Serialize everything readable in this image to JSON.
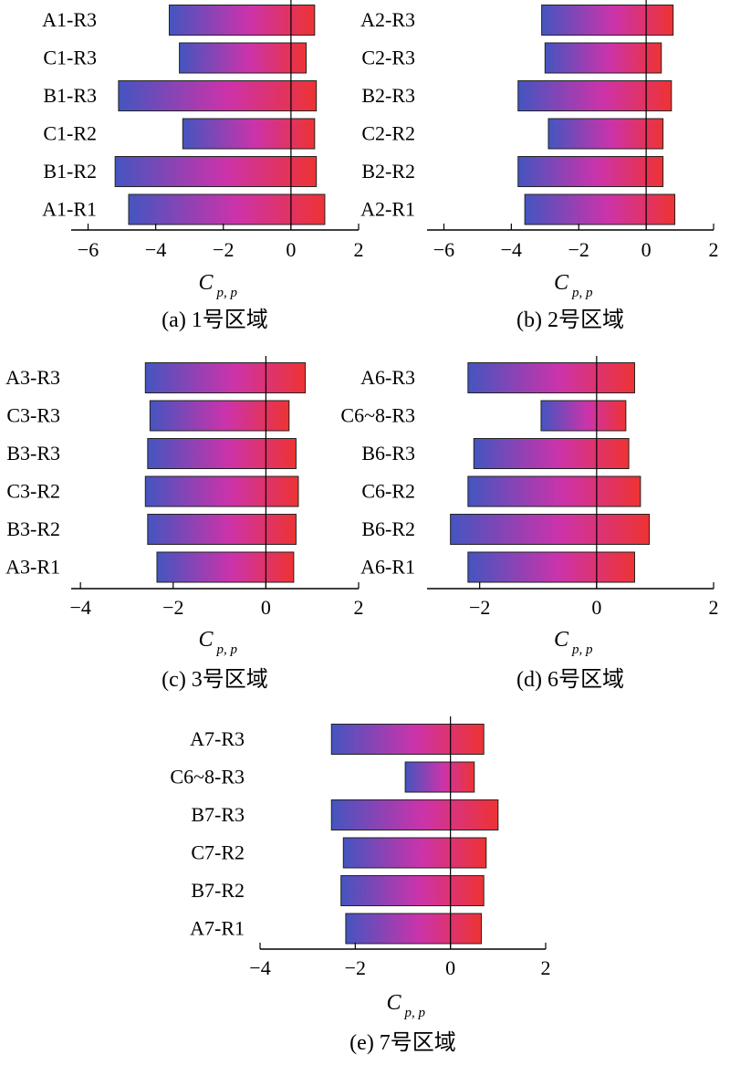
{
  "colors": {
    "bar_left": "#4455c0",
    "bar_mid": "#cc33aa",
    "bar_right": "#ee3333",
    "axis": "#000000"
  },
  "chart_data": [
    {
      "type": "bar",
      "orientation": "horizontal",
      "caption": "(a) 1号区域",
      "xlabel_main": "C",
      "xlabel_sub": "p, p",
      "xlim": [
        -6.5,
        2
      ],
      "xticks": [
        -6,
        -4,
        -2,
        0,
        2
      ],
      "xtick_labels": [
        "−6",
        "−4",
        "−2",
        "0",
        "2"
      ],
      "categories": [
        "A1-R3",
        "C1-R3",
        "B1-R3",
        "C1-R2",
        "B1-R2",
        "A1-R1"
      ],
      "ranges": [
        [
          -3.6,
          0.7
        ],
        [
          -3.3,
          0.45
        ],
        [
          -5.1,
          0.75
        ],
        [
          -3.2,
          0.7
        ],
        [
          -5.2,
          0.75
        ],
        [
          -4.8,
          1.0
        ]
      ]
    },
    {
      "type": "bar",
      "orientation": "horizontal",
      "caption": "(b) 2号区域",
      "xlabel_main": "C",
      "xlabel_sub": "p, p",
      "xlim": [
        -6.5,
        2
      ],
      "xticks": [
        -6,
        -4,
        -2,
        0,
        2
      ],
      "xtick_labels": [
        "−6",
        "−4",
        "−2",
        "0",
        "2"
      ],
      "categories": [
        "A2-R3",
        "C2-R3",
        "B2-R3",
        "C2-R2",
        "B2-R2",
        "A2-R1"
      ],
      "ranges": [
        [
          -3.1,
          0.8
        ],
        [
          -3.0,
          0.45
        ],
        [
          -3.8,
          0.75
        ],
        [
          -2.9,
          0.5
        ],
        [
          -3.8,
          0.5
        ],
        [
          -3.6,
          0.85
        ]
      ]
    },
    {
      "type": "bar",
      "orientation": "horizontal",
      "caption": "(c) 3号区域",
      "xlabel_main": "C",
      "xlabel_sub": "p, p",
      "xlim": [
        -4.2,
        2
      ],
      "xticks": [
        -4,
        -2,
        0,
        2
      ],
      "xtick_labels": [
        "−4",
        "−2",
        "0",
        "2"
      ],
      "categories": [
        "A3-R3",
        "C3-R3",
        "B3-R3",
        "C3-R2",
        "B3-R2",
        "A3-R1"
      ],
      "ranges": [
        [
          -2.6,
          0.85
        ],
        [
          -2.5,
          0.5
        ],
        [
          -2.55,
          0.65
        ],
        [
          -2.6,
          0.7
        ],
        [
          -2.55,
          0.65
        ],
        [
          -2.35,
          0.6
        ]
      ]
    },
    {
      "type": "bar",
      "orientation": "horizontal",
      "caption": "(d) 6号区域",
      "xlabel_main": "C",
      "xlabel_sub": "p, p",
      "xlim": [
        -2.9,
        2
      ],
      "xticks": [
        -2,
        0,
        2
      ],
      "xtick_labels": [
        "−2",
        "0",
        "2"
      ],
      "categories": [
        "A6-R3",
        "C6~8-R3",
        "B6-R3",
        "C6-R2",
        "B6-R2",
        "A6-R1"
      ],
      "ranges": [
        [
          -2.2,
          0.65
        ],
        [
          -0.95,
          0.5
        ],
        [
          -2.1,
          0.55
        ],
        [
          -2.2,
          0.75
        ],
        [
          -2.5,
          0.9
        ],
        [
          -2.2,
          0.65
        ]
      ]
    },
    {
      "type": "bar",
      "orientation": "horizontal",
      "caption": "(e) 7号区域",
      "xlabel_main": "C",
      "xlabel_sub": "p, p",
      "xlim": [
        -4,
        2
      ],
      "xticks": [
        -4,
        -2,
        0,
        2
      ],
      "xtick_labels": [
        "−4",
        "−2",
        "0",
        "2"
      ],
      "categories": [
        "A7-R3",
        "C6~8-R3",
        "B7-R3",
        "C7-R2",
        "B7-R2",
        "A7-R1"
      ],
      "ranges": [
        [
          -2.5,
          0.7
        ],
        [
          -0.95,
          0.5
        ],
        [
          -2.5,
          1.0
        ],
        [
          -2.25,
          0.75
        ],
        [
          -2.3,
          0.7
        ],
        [
          -2.2,
          0.65
        ]
      ]
    }
  ]
}
